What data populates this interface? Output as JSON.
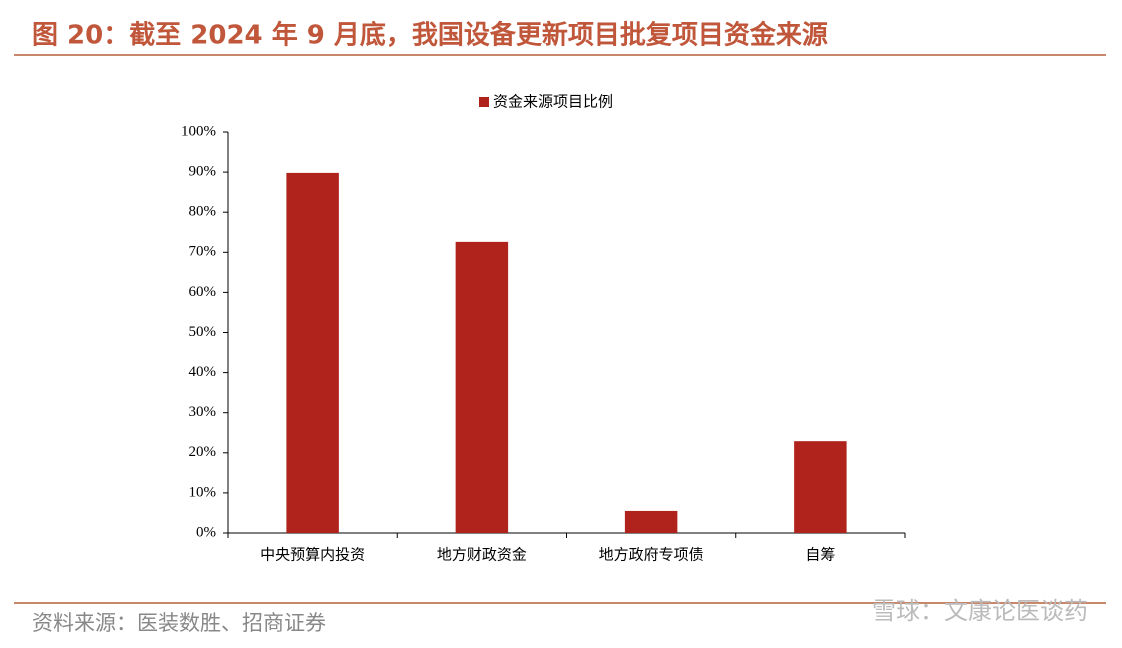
{
  "chart_data": {
    "type": "bar",
    "title": "图 20：截至 2024 年 9 月底，我国设备更新项目批复项目资金来源",
    "source": "资料来源：医装数胜、招商证券",
    "watermark": "雪球：文康论医谈药",
    "categories": [
      "中央预算内投资",
      "地方财政资金",
      "地方政府专项债",
      "自筹"
    ],
    "series": [
      {
        "name": "资金来源项目比例",
        "color": "#b0221c",
        "values": [
          89.8,
          72.6,
          5.5,
          22.9
        ]
      }
    ],
    "ylim": [
      0,
      100
    ],
    "yticks": [
      {
        "value": 0,
        "label": "0%"
      },
      {
        "value": 10,
        "label": "10%"
      },
      {
        "value": 20,
        "label": "20%"
      },
      {
        "value": 30,
        "label": "30%"
      },
      {
        "value": 40,
        "label": "40%"
      },
      {
        "value": 50,
        "label": "50%"
      },
      {
        "value": 60,
        "label": "60%"
      },
      {
        "value": 70,
        "label": "70%"
      },
      {
        "value": 80,
        "label": "80%"
      },
      {
        "value": 90,
        "label": "90%"
      },
      {
        "value": 100,
        "label": "100%"
      }
    ],
    "legend": "top",
    "grid": false
  }
}
